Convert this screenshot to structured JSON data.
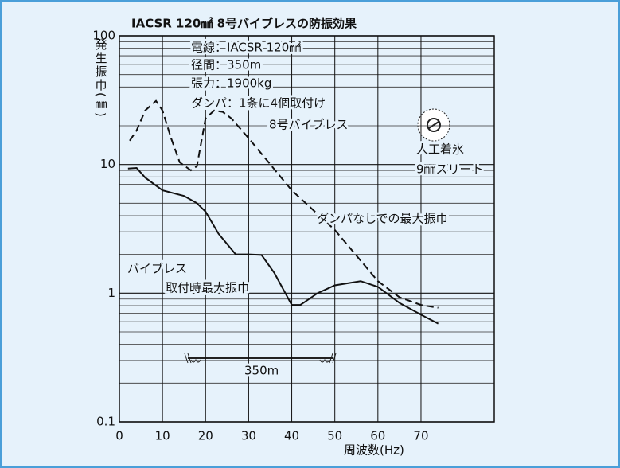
{
  "chart_data": {
    "type": "line",
    "title": "IACSR 120㎟ 8号バイブレスの防振効果",
    "y_label": "発生振巾(㎜)",
    "x_label": "周波数(Hz)",
    "log_y": true,
    "grid": true,
    "minor_grid": true,
    "xlim": [
      0,
      87
    ],
    "xticks": [
      0,
      10,
      20,
      30,
      40,
      50,
      60,
      70
    ],
    "ylim": [
      0.1,
      100
    ],
    "yticks": [
      {
        "value": 0.1,
        "label": "0.1"
      },
      1,
      10,
      100
    ],
    "series": [
      {
        "name": "ダンパなしでの最大振巾",
        "color": "#111111",
        "dashed": true,
        "x": [
          2.4,
          4,
          6,
          8.5,
          10,
          12,
          14,
          16.6,
          18,
          19,
          20,
          22,
          24,
          26,
          30,
          40,
          50,
          60,
          65,
          70,
          74
        ],
        "values": [
          15.3,
          18.4,
          26.3,
          31.2,
          26.3,
          16,
          10.4,
          9.0,
          9.7,
          14.9,
          22.8,
          26.3,
          25.6,
          22.8,
          16,
          6.3,
          3.1,
          1.24,
          0.93,
          0.81,
          0.77
        ]
      },
      {
        "name": "バイブレス",
        "color": "#111111",
        "dashed": false,
        "x": [
          2,
          4,
          6,
          10,
          15,
          18,
          20,
          23,
          27,
          30,
          33,
          36,
          40,
          42,
          46,
          50,
          56,
          60,
          65,
          70,
          74
        ],
        "values": [
          9.3,
          9.4,
          7.9,
          6.3,
          5.7,
          5.0,
          4.3,
          2.9,
          2.0,
          2.0,
          1.98,
          1.43,
          0.81,
          0.81,
          1.0,
          1.15,
          1.24,
          1.12,
          0.84,
          0.68,
          0.58
        ]
      }
    ],
    "annotations": [
      "電線：IACSR 120㎟",
      "径間：350m",
      "張力：1900kg",
      "ダンパ：1条に4個取付け",
      "8号バイブレス",
      "人工着氷",
      "9㎜スリート",
      "取付時最大振巾",
      "350m"
    ]
  }
}
